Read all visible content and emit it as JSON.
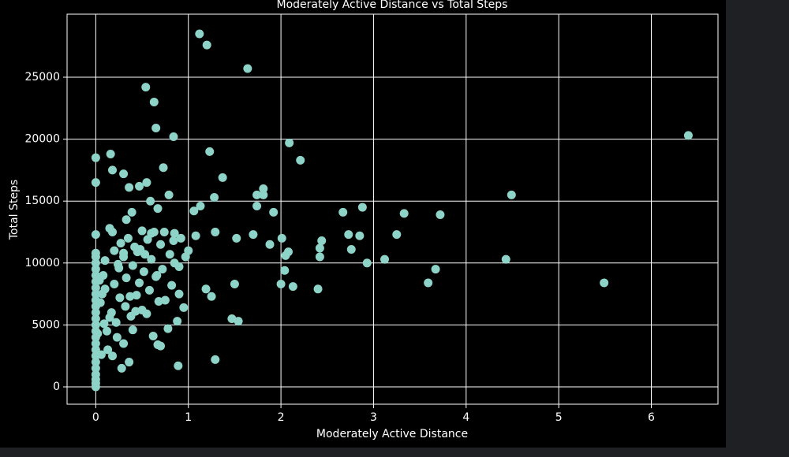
{
  "chart_data": {
    "type": "scatter",
    "title": "Moderately Active Distance vs Total Steps",
    "x_label": "Moderately Active Distance",
    "y_label": "Total Steps",
    "color": "#8dd3c7",
    "grid": true,
    "xlim": [
      -0.31,
      6.72
    ],
    "ylim": [
      -1400,
      30090
    ],
    "xticks": [
      0,
      1,
      2,
      3,
      4,
      5,
      6
    ],
    "yticks": [
      0,
      5000,
      10000,
      15000,
      20000,
      25000
    ],
    "x": [
      1.12,
      1.2,
      1.64,
      0.54,
      0.63,
      0.65,
      0.84,
      6.4,
      2.09,
      1.23,
      2.21,
      0.16,
      0,
      0.73,
      0.18,
      0.3,
      1.37,
      0,
      0.55,
      0.47,
      0.36,
      1.81,
      4.49,
      1.74,
      1.81,
      0.79,
      1.28,
      0.59,
      1.74,
      1.13,
      0.67,
      2.88,
      2.67,
      1.92,
      3.33,
      3.72,
      1.06,
      0.39,
      0.33,
      1.29,
      2.73,
      2.85,
      3.25,
      1.7,
      0,
      2.44,
      1.52,
      2.01,
      1.08,
      2.76,
      2.42,
      1.88,
      2.08,
      2.42,
      3.12,
      4.43,
      2.93,
      2.05,
      3.67,
      2.04,
      3.59,
      5.49,
      2.0,
      2.13,
      2.4,
      1.5,
      1.47,
      1.54,
      1.29,
      0.89,
      1.19,
      1.25,
      0,
      0,
      0,
      0,
      0,
      0,
      0,
      0,
      0,
      0,
      0,
      0,
      0,
      0,
      0,
      0,
      0,
      0,
      0,
      0,
      0,
      0,
      0,
      0,
      0.05,
      0.07,
      0.08,
      0.1,
      0.12,
      0.13,
      0.15,
      0.17,
      0.18,
      0.2,
      0.2,
      0.22,
      0.23,
      0.25,
      0.26,
      0.28,
      0.3,
      0.3,
      0.32,
      0.33,
      0.35,
      0.36,
      0.38,
      0.4,
      0.4,
      0.42,
      0.44,
      0.45,
      0.47,
      0.5,
      0.5,
      0.52,
      0.55,
      0.56,
      0.58,
      0.6,
      0.62,
      0.63,
      0.65,
      0.67,
      0.68,
      0.7,
      0.72,
      0.74,
      0.75,
      0.78,
      0.8,
      0.82,
      0.84,
      0.85,
      0.88,
      0.9,
      0.92,
      0.95,
      0.97,
      1.0,
      0.1,
      0.15,
      0.24,
      0.3,
      0.37,
      0.43,
      0.48,
      0.53,
      0.6,
      0.66,
      0.7,
      0.85,
      0.9,
      0.18,
      0.27,
      0.02,
      0.04,
      0.06,
      0.09
    ],
    "values": [
      28500,
      27600,
      25700,
      24200,
      23000,
      20900,
      20200,
      20300,
      19700,
      19000,
      18300,
      18800,
      18500,
      17700,
      17500,
      17200,
      16900,
      16500,
      16500,
      16200,
      16100,
      16000,
      15500,
      15500,
      15500,
      15500,
      15300,
      15000,
      14600,
      14600,
      14400,
      14500,
      14100,
      14100,
      14000,
      13900,
      14200,
      14100,
      13500,
      12500,
      12300,
      12200,
      12300,
      12300,
      12300,
      11800,
      12000,
      12000,
      12200,
      11100,
      11200,
      11500,
      10900,
      10500,
      10300,
      10300,
      10000,
      10600,
      9500,
      9400,
      8400,
      8400,
      8300,
      8100,
      7900,
      8300,
      5500,
      5300,
      2200,
      1700,
      7900,
      7300,
      0,
      300,
      600,
      1000,
      1500,
      2000,
      2500,
      3000,
      3500,
      4000,
      4500,
      5000,
      5500,
      6000,
      6500,
      7000,
      7500,
      8000,
      8500,
      9000,
      9500,
      10000,
      10500,
      10800,
      6800,
      7500,
      9000,
      10200,
      4500,
      3000,
      12800,
      6000,
      2500,
      8300,
      11000,
      5200,
      4000,
      9600,
      7200,
      1500,
      10500,
      3500,
      6500,
      8800,
      12000,
      2000,
      5700,
      9800,
      4600,
      11300,
      7400,
      10900,
      8400,
      6200,
      12600,
      9300,
      5900,
      11900,
      7800,
      10300,
      4100,
      12500,
      8900,
      3400,
      6900,
      11500,
      9500,
      12500,
      7000,
      4700,
      10700,
      8200,
      11800,
      12400,
      5300,
      9700,
      12000,
      6400,
      10500,
      11000,
      7900,
      5600,
      9900,
      10800,
      7300,
      6100,
      11100,
      10700,
      12400,
      9000,
      3300,
      10000,
      7500,
      12500,
      11600,
      4300,
      8600,
      2600,
      5100
    ]
  }
}
